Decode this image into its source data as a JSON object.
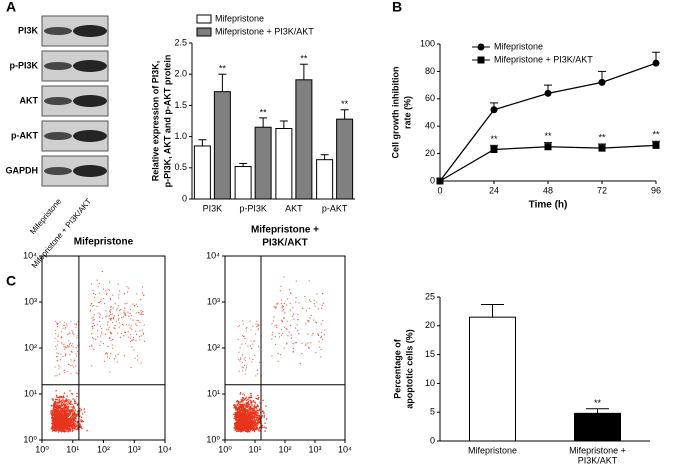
{
  "panel_labels": [
    "A",
    "B",
    "C"
  ],
  "blot": {
    "rows": [
      "PI3K",
      "p-PI3K",
      "AKT",
      "p-AKT",
      "GAPDH"
    ],
    "lanes": [
      "Mifepristone",
      "Mifepristone + PI3K/AKT"
    ]
  },
  "chart_data": [
    {
      "type": "bar",
      "y_label": [
        "Relative expression of PI3K,",
        "p-PI3K, AKT and p-AKT protein"
      ],
      "categories": [
        "PI3K",
        "p-PI3K",
        "AKT",
        "p-AKT"
      ],
      "series": [
        {
          "name": "Mifepristone",
          "color": "#ffffff",
          "values": [
            0.85,
            0.52,
            1.13,
            0.63
          ],
          "errors": [
            0.1,
            0.05,
            0.12,
            0.08
          ]
        },
        {
          "name": "Mifepristone + PI3K/AKT",
          "color": "#808080",
          "values": [
            1.72,
            1.15,
            1.91,
            1.28
          ],
          "errors": [
            0.28,
            0.15,
            0.25,
            0.15
          ],
          "annotations": [
            "**",
            "**",
            "**",
            "**"
          ]
        }
      ],
      "ylim": [
        0,
        2.5
      ],
      "yticks": [
        0,
        0.5,
        {
          "value": 1,
          "label": "1.0"
        },
        1.5,
        {
          "value": 2,
          "label": "2.0"
        },
        2.5
      ]
    },
    {
      "type": "line",
      "x_label": "Time (h)",
      "y_label": [
        "Cell growth inhibition",
        "rate (%)"
      ],
      "x": [
        0,
        24,
        48,
        72,
        96
      ],
      "series": [
        {
          "name": "Mifepristone",
          "color": "#000000",
          "marker": "circle",
          "values": [
            0,
            52,
            64,
            72,
            86
          ],
          "errors": [
            0,
            5,
            6,
            8,
            8
          ]
        },
        {
          "name": "Mifepristone + PI3K/AKT",
          "color": "#000000",
          "marker": "square",
          "values": [
            0,
            23,
            25,
            24,
            26
          ],
          "errors": [
            0,
            3,
            3,
            3,
            3
          ],
          "annotations": [
            null,
            "**",
            "**",
            "**",
            "**"
          ]
        }
      ],
      "xlim": [
        0,
        96
      ],
      "xticks": [
        0,
        24,
        48,
        72,
        96
      ],
      "ylim": [
        0,
        100
      ],
      "yticks": [
        0,
        20,
        40,
        60,
        80,
        100
      ]
    },
    {
      "type": "scatter",
      "title": [
        "Mifepristone"
      ],
      "log_scale": true,
      "color": "#e8341c",
      "xlim": [
        1,
        10000
      ],
      "ylim": [
        1,
        10000
      ],
      "xticks": [
        {
          "value": 1,
          "label": "10⁰"
        },
        {
          "value": 10,
          "label": "10¹"
        },
        {
          "value": 100,
          "label": "10²"
        },
        {
          "value": 1000,
          "label": "10³"
        },
        {
          "value": 10000,
          "label": "10⁴"
        }
      ],
      "yticks": [
        {
          "value": 1,
          "label": "10⁰"
        },
        {
          "value": 10,
          "label": "10¹"
        },
        {
          "value": 100,
          "label": "10²"
        },
        {
          "value": 1000,
          "label": "10³"
        },
        {
          "value": 10000,
          "label": "10⁴"
        }
      ]
    },
    {
      "type": "scatter",
      "title": [
        "Mifepristone +",
        "PI3K/AKT"
      ],
      "log_scale": true,
      "color": "#e8341c",
      "xlim": [
        1,
        10000
      ],
      "ylim": [
        1,
        10000
      ],
      "xticks": [
        {
          "value": 1,
          "label": "10⁰"
        },
        {
          "value": 10,
          "label": "10¹"
        },
        {
          "value": 100,
          "label": "10²"
        },
        {
          "value": 1000,
          "label": "10³"
        },
        {
          "value": 10000,
          "label": "10⁴"
        }
      ],
      "yticks": [
        {
          "value": 1,
          "label": "10⁰"
        },
        {
          "value": 10,
          "label": "10¹"
        },
        {
          "value": 100,
          "label": "10²"
        },
        {
          "value": 1000,
          "label": "10³"
        },
        {
          "value": 10000,
          "label": "10⁴"
        }
      ]
    },
    {
      "type": "bar",
      "y_label": [
        "Percentage of",
        "apoptotic cells (%)"
      ],
      "categories": [
        [
          "Mifepristone"
        ],
        [
          "Mifepristone +",
          "PI3K/AKT"
        ]
      ],
      "series": [
        {
          "colors": [
            "#ffffff",
            "#000000"
          ],
          "values": [
            21.5,
            4.8
          ],
          "errors": [
            2.2,
            0.8
          ],
          "annotations": [
            null,
            "**"
          ]
        }
      ],
      "ylim": [
        0,
        25
      ],
      "yticks": [
        0,
        5,
        10,
        15,
        20,
        25
      ]
    }
  ]
}
